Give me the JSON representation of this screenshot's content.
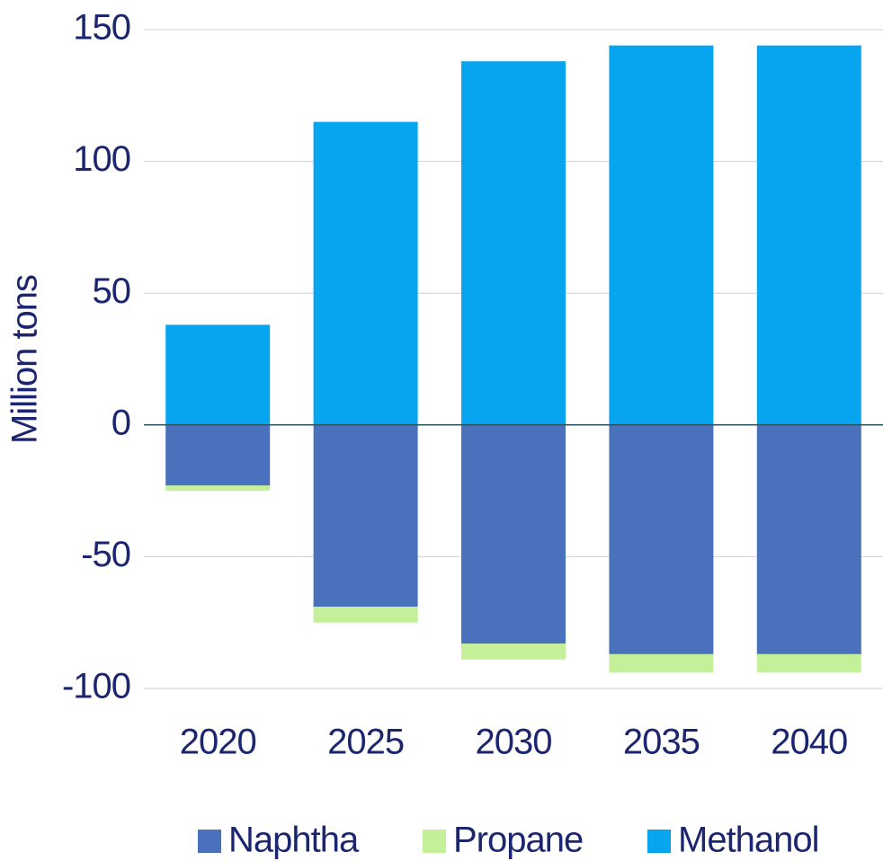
{
  "chart_data": {
    "type": "stacked_bar",
    "y_label": "Million tons",
    "categories": [
      "2020",
      "2025",
      "2030",
      "2035",
      "2040"
    ],
    "series": [
      {
        "name": "Naphtha",
        "color": "#4a72bc",
        "values": [
          -23,
          -69,
          -83,
          -87,
          -87
        ]
      },
      {
        "name": "Propane",
        "color": "#c4f09a",
        "values": [
          -2,
          -6,
          -6,
          -7,
          -7
        ]
      },
      {
        "name": "Methanol",
        "color": "#07a5ef",
        "values": [
          38,
          115,
          138,
          144,
          144
        ]
      }
    ],
    "ylim": [
      -100,
      150
    ],
    "yticks": [
      -100,
      -50,
      0,
      50,
      100,
      150
    ],
    "grid": true,
    "legend": "bottom"
  }
}
